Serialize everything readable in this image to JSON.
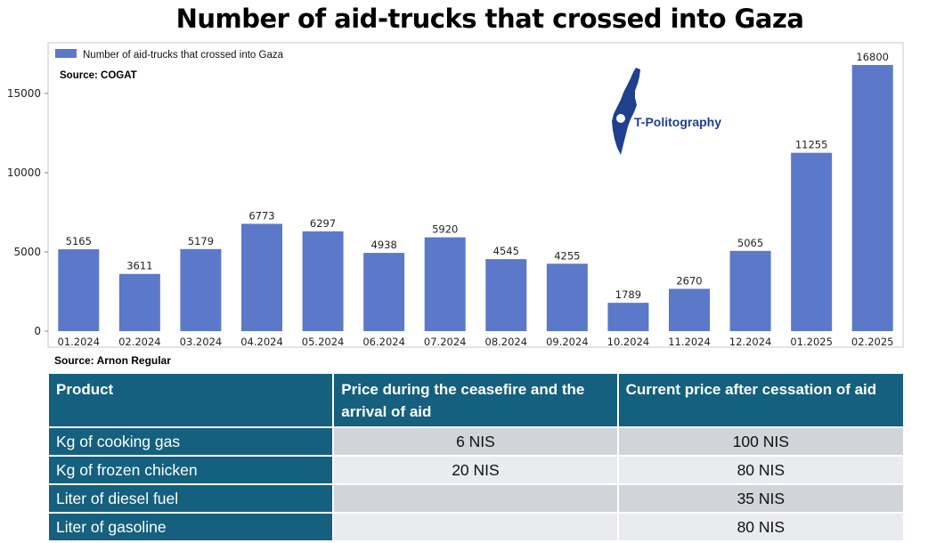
{
  "page": {
    "title": "Number of aid-trucks that crossed into Gaza"
  },
  "colors": {
    "bar": "#5b79c8",
    "table_header": "#14607e",
    "row_odd": "#d1d5da",
    "row_even": "#e9ebee",
    "logo": "#1f3f8f"
  },
  "chart_data": {
    "type": "bar",
    "title": "Number of aid-trucks that crossed into Gaza",
    "source": "Source: COGAT",
    "legend": "Number of aid-trucks that crossed into Gaza",
    "legend_position": "top-left",
    "categories": [
      "01.2024",
      "02.2024",
      "03.2024",
      "04.2024",
      "05.2024",
      "06.2024",
      "07.2024",
      "08.2024",
      "09.2024",
      "10.2024",
      "11.2024",
      "12.2024",
      "01.2025",
      "02.2025"
    ],
    "values": [
      5165,
      3611,
      5179,
      6773,
      6297,
      4938,
      5920,
      4545,
      4255,
      1789,
      2670,
      5065,
      11255,
      16800
    ],
    "y_ticks": [
      "0",
      "5000",
      "10000",
      "15000"
    ],
    "ylim": [
      0,
      17500
    ],
    "xlabel": "",
    "ylabel": "",
    "grid": false
  },
  "logo": {
    "text": "T-Politography",
    "icon": "israel-map-icon"
  },
  "table": {
    "source": "Source: Arnon Regular",
    "headers": [
      "Product",
      "Price during the ceasefire and the arrival of aid",
      "Current price after cessation of aid"
    ],
    "rows": [
      [
        "Kg of cooking gas",
        "6 NIS",
        "100 NIS"
      ],
      [
        "Kg of frozen chicken",
        "20 NIS",
        "80 NIS"
      ],
      [
        "Liter of diesel fuel",
        "",
        "35 NIS"
      ],
      [
        "Liter of gasoline",
        "",
        "80 NIS"
      ]
    ]
  }
}
